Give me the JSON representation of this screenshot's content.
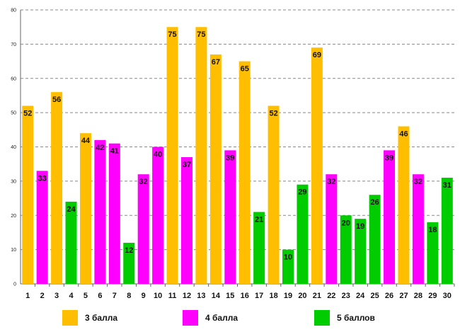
{
  "chart_data": {
    "type": "bar",
    "categories": [
      "1",
      "2",
      "3",
      "4",
      "5",
      "6",
      "7",
      "8",
      "9",
      "10",
      "11",
      "12",
      "13",
      "14",
      "15",
      "16",
      "17",
      "18",
      "19",
      "20",
      "21",
      "22",
      "23",
      "24",
      "25",
      "26",
      "27",
      "28",
      "29",
      "30"
    ],
    "values": [
      52,
      33,
      56,
      24,
      44,
      42,
      41,
      12,
      32,
      40,
      75,
      37,
      75,
      67,
      39,
      65,
      21,
      52,
      10,
      29,
      69,
      32,
      20,
      19,
      26,
      39,
      46,
      32,
      18,
      31
    ],
    "groups": [
      0,
      1,
      0,
      2,
      0,
      1,
      1,
      2,
      1,
      1,
      0,
      1,
      0,
      0,
      1,
      0,
      2,
      0,
      2,
      2,
      0,
      1,
      2,
      2,
      2,
      1,
      0,
      1,
      2,
      2
    ],
    "ylim": [
      0,
      80
    ],
    "yticks": [
      0,
      10,
      20,
      30,
      40,
      50,
      60,
      70,
      80
    ],
    "grid": true,
    "title": "",
    "xlabel": "",
    "ylabel": "",
    "legend": [
      {
        "name": "3 балла",
        "color": "#FFBF00"
      },
      {
        "name": "4 балла",
        "color": "#FF00FF"
      },
      {
        "name": "5 баллов",
        "color": "#00CC00"
      }
    ]
  }
}
